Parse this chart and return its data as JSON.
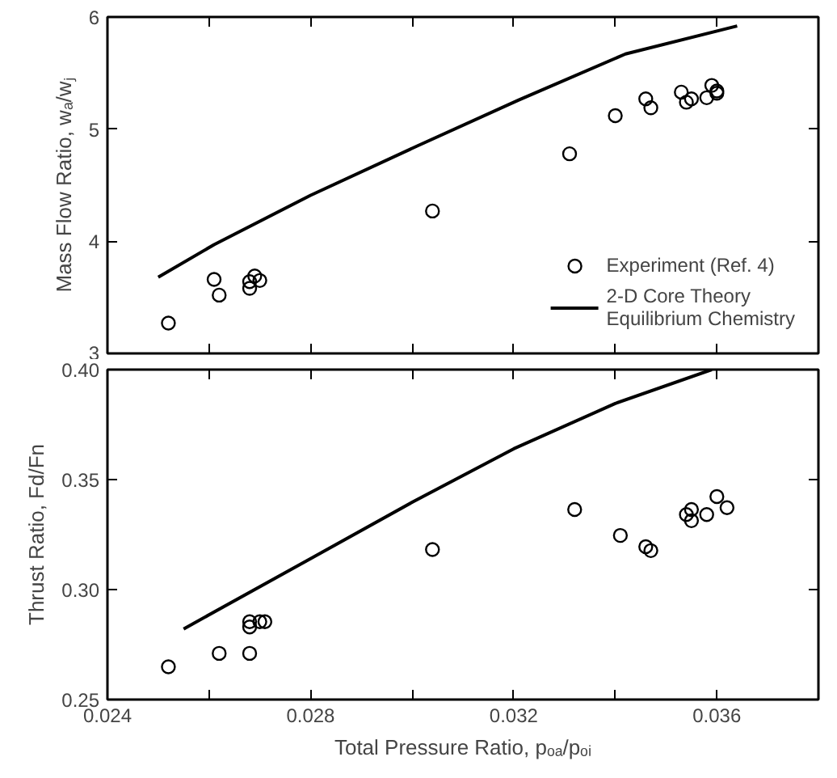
{
  "chart_data": [
    {
      "type": "scatter",
      "ylabel": "Mass Flow Ratio, wₐ/wⱼ",
      "xlim": [
        0.024,
        0.038
      ],
      "ylim": [
        3,
        6
      ],
      "xticks": [
        {
          "value": 0.024,
          "label": null
        },
        {
          "value": 0.026,
          "label": null
        },
        {
          "value": 0.028,
          "label": null
        },
        {
          "value": 0.03,
          "label": null
        },
        {
          "value": 0.032,
          "label": null
        },
        {
          "value": 0.034,
          "label": null
        },
        {
          "value": 0.036,
          "label": null
        },
        {
          "value": 0.038,
          "label": null
        }
      ],
      "yticks": [
        3,
        4,
        5,
        6
      ],
      "tick_labels": "y",
      "grid": false,
      "legend": "bottom right",
      "series": [
        {
          "name": "Experiment (Ref. 4)",
          "marker": "circle",
          "color": "#000000",
          "x": [
            0.0252,
            0.0261,
            0.0262,
            0.0268,
            0.0268,
            0.0269,
            0.027,
            0.0304,
            0.0331,
            0.034,
            0.0346,
            0.0347,
            0.0353,
            0.0354,
            0.0355,
            0.0358,
            0.0359,
            0.036,
            0.036
          ],
          "values": [
            3.27,
            3.66,
            3.52,
            3.58,
            3.64,
            3.69,
            3.65,
            4.27,
            4.78,
            5.12,
            5.27,
            5.19,
            5.33,
            5.24,
            5.27,
            5.28,
            5.39,
            5.32,
            5.34
          ]
        },
        {
          "name": "2-D Core Theory\nEquilibrium Chemistry",
          "type": "line",
          "line_style": "solid",
          "color": "#000000",
          "x": [
            0.025,
            0.0261,
            0.028,
            0.0301,
            0.0321,
            0.0342,
            0.0364
          ],
          "values": [
            3.68,
            3.97,
            4.41,
            4.85,
            5.26,
            5.67,
            5.92
          ]
        }
      ]
    },
    {
      "type": "scatter",
      "xlabel": "Total Pressure Ratio, pₒₐ/pₒᵢ",
      "ylabel": "Thrust Ratio, Fd/Fn",
      "xlim": [
        0.024,
        0.038
      ],
      "ylim": [
        0.25,
        0.4
      ],
      "xticks": [
        {
          "value": 0.024,
          "label": "0.024"
        },
        {
          "value": 0.026,
          "label": null
        },
        {
          "value": 0.028,
          "label": "0.028"
        },
        {
          "value": 0.03,
          "label": null
        },
        {
          "value": 0.032,
          "label": "0.032"
        },
        {
          "value": 0.034,
          "label": null
        },
        {
          "value": 0.036,
          "label": "0.036"
        },
        {
          "value": 0.038,
          "label": null
        }
      ],
      "yticks": [
        {
          "value": 0.25,
          "label": "0.25"
        },
        {
          "value": 0.3,
          "label": "0.30"
        },
        {
          "value": 0.35,
          "label": "0.35"
        },
        {
          "value": 0.4,
          "label": "0.40"
        }
      ],
      "grid": false,
      "legend": false,
      "series": [
        {
          "marker": "circle",
          "color": "#000000",
          "x": [
            0.0252,
            0.0262,
            0.0268,
            0.0268,
            0.0268,
            0.027,
            0.0271,
            0.0304,
            0.0332,
            0.0341,
            0.0346,
            0.0347,
            0.0354,
            0.0355,
            0.0355,
            0.0358,
            0.036,
            0.0362
          ],
          "values": [
            0.2649,
            0.271,
            0.271,
            0.2854,
            0.283,
            0.2854,
            0.2854,
            0.3182,
            0.3364,
            0.3246,
            0.3195,
            0.3177,
            0.3341,
            0.3313,
            0.3364,
            0.3341,
            0.3423,
            0.3372
          ]
        },
        {
          "type": "line",
          "line_style": "solid",
          "color": "#000000",
          "x": [
            0.0255,
            0.028,
            0.03,
            0.032,
            0.034,
            0.0359
          ],
          "values": [
            0.2821,
            0.3141,
            0.3397,
            0.364,
            0.3846,
            0.4
          ]
        }
      ]
    }
  ]
}
